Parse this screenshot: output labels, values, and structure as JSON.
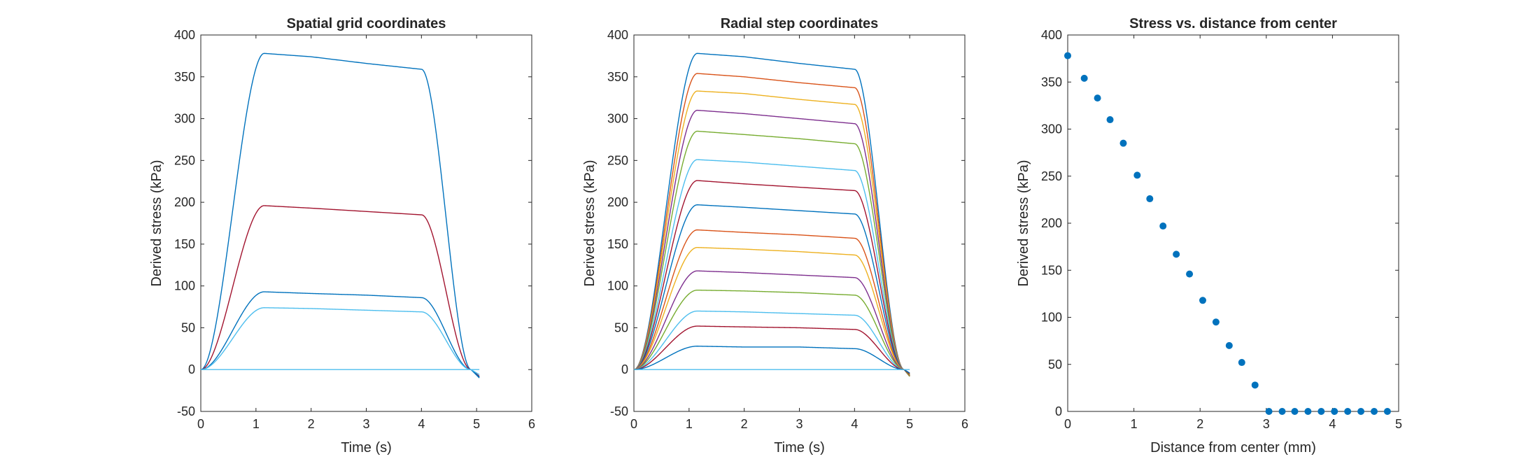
{
  "chart_data": [
    {
      "type": "line",
      "title": "Spatial grid coordinates",
      "xlabel": "Time (s)",
      "ylabel": "Derived stress (kPa)",
      "xlim": [
        0,
        6
      ],
      "ylim": [
        -50,
        400
      ],
      "xticks": [
        0,
        1,
        2,
        3,
        4,
        5,
        6
      ],
      "yticks": [
        -50,
        0,
        50,
        100,
        150,
        200,
        250,
        300,
        350,
        400
      ],
      "x_end": 5.05,
      "grid": false,
      "series": [
        {
          "color": "#0072BD",
          "plateau": [
            378,
            374,
            366,
            359
          ],
          "end": -10
        },
        {
          "color": "#A2142F",
          "plateau": [
            196,
            193,
            189,
            185
          ],
          "end": -8
        },
        {
          "color": "#0072BD",
          "plateau": [
            93,
            91,
            89,
            86
          ],
          "end": -9
        },
        {
          "color": "#4DBEEE",
          "plateau": [
            74,
            73,
            71,
            69
          ],
          "end": -6
        },
        {
          "color": "#4DBEEE",
          "plateau": [
            0,
            0,
            0,
            0
          ],
          "end": 0
        }
      ]
    },
    {
      "type": "line",
      "title": "Radial step coordinates",
      "xlabel": "Time (s)",
      "ylabel": "Derived stress (kPa)",
      "xlim": [
        0,
        6
      ],
      "ylim": [
        -50,
        400
      ],
      "xticks": [
        0,
        1,
        2,
        3,
        4,
        5,
        6
      ],
      "yticks": [
        -50,
        0,
        50,
        100,
        150,
        200,
        250,
        300,
        350,
        400
      ],
      "x_end": 5.0,
      "grid": false,
      "series": [
        {
          "color": "#0072BD",
          "plateau": [
            378,
            374,
            366,
            359
          ],
          "end": -8
        },
        {
          "color": "#D95319",
          "plateau": [
            354,
            350,
            343,
            337
          ],
          "end": -8
        },
        {
          "color": "#EDB120",
          "plateau": [
            333,
            330,
            323,
            317
          ],
          "end": -8
        },
        {
          "color": "#7E2F8E",
          "plateau": [
            310,
            306,
            300,
            294
          ],
          "end": -8
        },
        {
          "color": "#77AC30",
          "plateau": [
            285,
            281,
            276,
            270
          ],
          "end": -8
        },
        {
          "color": "#4DBEEE",
          "plateau": [
            251,
            248,
            243,
            238
          ],
          "end": -7
        },
        {
          "color": "#A2142F",
          "plateau": [
            226,
            222,
            218,
            214
          ],
          "end": -7
        },
        {
          "color": "#0072BD",
          "plateau": [
            197,
            194,
            190,
            186
          ],
          "end": -7
        },
        {
          "color": "#D95319",
          "plateau": [
            167,
            164,
            161,
            157
          ],
          "end": -7
        },
        {
          "color": "#EDB120",
          "plateau": [
            146,
            144,
            141,
            137
          ],
          "end": -6
        },
        {
          "color": "#7E2F8E",
          "plateau": [
            118,
            116,
            113,
            110
          ],
          "end": -6
        },
        {
          "color": "#77AC30",
          "plateau": [
            95,
            94,
            92,
            89
          ],
          "end": -6
        },
        {
          "color": "#4DBEEE",
          "plateau": [
            70,
            69,
            67,
            65
          ],
          "end": -5
        },
        {
          "color": "#A2142F",
          "plateau": [
            52,
            51,
            50,
            48
          ],
          "end": -5
        },
        {
          "color": "#0072BD",
          "plateau": [
            28,
            27,
            27,
            25
          ],
          "end": -4
        },
        {
          "color": "#4DBEEE",
          "plateau": [
            0,
            0,
            0,
            0
          ],
          "end": 0
        }
      ]
    },
    {
      "type": "scatter",
      "title": "Stress vs. distance from center",
      "xlabel": "Distance from center (mm)",
      "ylabel": "Derived stress (kPa)",
      "xlim": [
        0,
        5
      ],
      "ylim": [
        0,
        400
      ],
      "xticks": [
        0,
        1,
        2,
        3,
        4,
        5
      ],
      "yticks": [
        0,
        50,
        100,
        150,
        200,
        250,
        300,
        350,
        400
      ],
      "grid": false,
      "color": "#0072BD",
      "points": [
        {
          "x": 0.0,
          "y": 378
        },
        {
          "x": 0.25,
          "y": 354
        },
        {
          "x": 0.45,
          "y": 333
        },
        {
          "x": 0.64,
          "y": 310
        },
        {
          "x": 0.84,
          "y": 285
        },
        {
          "x": 1.05,
          "y": 251
        },
        {
          "x": 1.24,
          "y": 226
        },
        {
          "x": 1.44,
          "y": 197
        },
        {
          "x": 1.64,
          "y": 167
        },
        {
          "x": 1.84,
          "y": 146
        },
        {
          "x": 2.04,
          "y": 118
        },
        {
          "x": 2.24,
          "y": 95
        },
        {
          "x": 2.44,
          "y": 70
        },
        {
          "x": 2.63,
          "y": 52
        },
        {
          "x": 2.83,
          "y": 28
        },
        {
          "x": 3.04,
          "y": 0
        },
        {
          "x": 3.24,
          "y": 0
        },
        {
          "x": 3.43,
          "y": 0
        },
        {
          "x": 3.63,
          "y": 0
        },
        {
          "x": 3.83,
          "y": 0
        },
        {
          "x": 4.03,
          "y": 0
        },
        {
          "x": 4.23,
          "y": 0
        },
        {
          "x": 4.43,
          "y": 0
        },
        {
          "x": 4.63,
          "y": 0
        },
        {
          "x": 4.83,
          "y": 0
        }
      ]
    }
  ]
}
